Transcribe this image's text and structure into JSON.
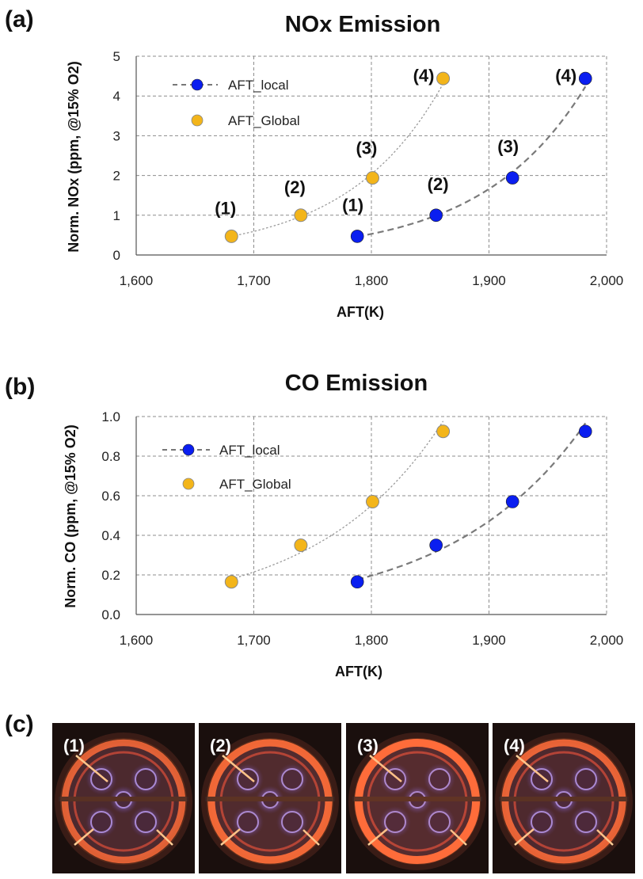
{
  "panels": {
    "a": "(a)",
    "b": "(b)",
    "c": "(c)"
  },
  "chart_data": [
    {
      "type": "scatter",
      "title": "NOx Emission",
      "xlabel": "AFT(K)",
      "ylabel": "Norm. NOx (ppm, @15% O2)",
      "xlim": [
        1600,
        2000
      ],
      "ylim": [
        0,
        5
      ],
      "xticks": [
        1600,
        1700,
        1800,
        1900,
        2000
      ],
      "xtick_labels": [
        "1,600",
        "1,700",
        "1,800",
        "1,900",
        "2,000"
      ],
      "yticks": [
        0,
        1,
        2,
        3,
        4,
        5
      ],
      "ytick_labels": [
        "0",
        "1",
        "2",
        "3",
        "4",
        "5"
      ],
      "grid": true,
      "legend_position": "top-left",
      "series": [
        {
          "name": "AFT_local",
          "color": "#0a1ef0",
          "x": [
            1788,
            1855,
            1920,
            1982
          ],
          "y": [
            0.47,
            1.0,
            1.94,
            4.44
          ],
          "trend": "dashed",
          "labels": [
            "(1)",
            "(2)",
            "(3)",
            "(4)"
          ]
        },
        {
          "name": "AFT_Global",
          "color": "#f3b51a",
          "x": [
            1681,
            1740,
            1801,
            1861
          ],
          "y": [
            0.47,
            1.0,
            1.94,
            4.44
          ],
          "trend": "dotted",
          "labels": [
            "(1)",
            "(2)",
            "(3)",
            "(4)"
          ]
        }
      ]
    },
    {
      "type": "scatter",
      "title": "CO Emission",
      "xlabel": "AFT(K)",
      "ylabel": "Norm. CO (ppm, @15% O2)",
      "xlim": [
        1600,
        2000
      ],
      "ylim": [
        0,
        1
      ],
      "xticks": [
        1600,
        1700,
        1800,
        1900,
        2000
      ],
      "xtick_labels": [
        "1,600",
        "1,700",
        "1,800",
        "1,900",
        "2,000"
      ],
      "yticks": [
        0,
        0.2,
        0.4,
        0.6,
        0.8,
        1.0
      ],
      "ytick_labels": [
        "0.0",
        "0.2",
        "0.4",
        "0.6",
        "0.8",
        "1.0"
      ],
      "grid": true,
      "legend_position": "top-left",
      "series": [
        {
          "name": "AFT_local",
          "color": "#0a1ef0",
          "x": [
            1788,
            1855,
            1920,
            1982
          ],
          "y": [
            0.165,
            0.35,
            0.57,
            0.925
          ],
          "trend": "dashed"
        },
        {
          "name": "AFT_Global",
          "color": "#f3b51a",
          "x": [
            1681,
            1740,
            1801,
            1861
          ],
          "y": [
            0.165,
            0.35,
            0.57,
            0.925
          ],
          "trend": "dotted"
        }
      ]
    }
  ],
  "photos": [
    {
      "label": "(1)",
      "brightness": 0.6
    },
    {
      "label": "(2)",
      "brightness": 0.8
    },
    {
      "label": "(3)",
      "brightness": 1.0
    },
    {
      "label": "(4)",
      "brightness": 0.7
    }
  ]
}
